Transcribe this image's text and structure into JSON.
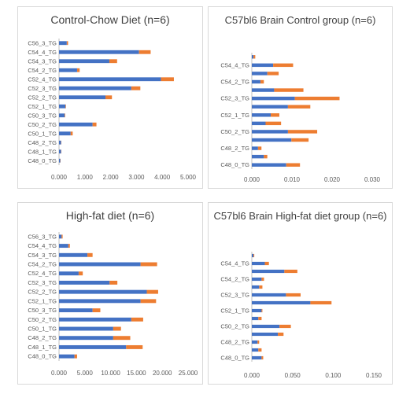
{
  "colors": {
    "series1": "#4472c4",
    "series2": "#ed7d31",
    "axis": "#bfbfbf",
    "text": "#595959"
  },
  "chart_data": [
    {
      "type": "bar",
      "orientation": "horizontal",
      "stacked": true,
      "title": "Control-Chow Diet (n=6)",
      "xlabel": "",
      "ylabel": "",
      "categories": [
        "C56_3_TG",
        "C54_4_TG",
        "C54_3_TG",
        "C54_2_TG",
        "C52_4_TG",
        "C52_3_TG",
        "C52_2_TG",
        "C52_1_TG",
        "C50_3_TG",
        "C50_2_TG",
        "C50_1_TG",
        "C48_2_TG",
        "C48_1_TG",
        "C48_0_TG"
      ],
      "series": [
        {
          "values": [
            0.3,
            3.1,
            1.95,
            0.7,
            3.95,
            2.8,
            1.8,
            0.25,
            0.22,
            1.3,
            0.45,
            0.08,
            0.08,
            0.05
          ]
        },
        {
          "values": [
            0.05,
            0.45,
            0.3,
            0.1,
            0.5,
            0.35,
            0.25,
            0.02,
            0.02,
            0.15,
            0.08,
            0.01,
            0.01,
            0.01
          ]
        }
      ],
      "xlim": [
        0,
        5
      ],
      "xticks": [
        "0.000",
        "1.000",
        "2.000",
        "3.000",
        "4.000",
        "5.000"
      ],
      "grid": false
    },
    {
      "type": "bar",
      "orientation": "horizontal",
      "stacked": true,
      "title": "C57bl6 Brain Control group (n=6)",
      "xlabel": "",
      "ylabel": "",
      "categories": [
        "",
        "C54_4_TG",
        "",
        "C54_2_TG",
        "",
        "C52_3_TG",
        "",
        "C52_1_TG",
        "",
        "C50_2_TG",
        "",
        "C48_2_TG",
        "",
        "C48_0_TG"
      ],
      "series": [
        {
          "values": [
            0.0005,
            0.0062,
            0.0045,
            0.0025,
            0.0065,
            0.0125,
            0.0105,
            0.0055,
            0.004,
            0.0105,
            0.0115,
            0.0018,
            0.0035,
            0.01
          ]
        },
        {
          "values": [
            0.0005,
            0.0058,
            0.0033,
            0.001,
            0.0085,
            0.013,
            0.0065,
            0.0025,
            0.0045,
            0.0085,
            0.005,
            0.001,
            0.001,
            0.004
          ]
        }
      ],
      "xlim": [
        0,
        0.035
      ],
      "xticks": [
        "0.000",
        "0.010",
        "0.020",
        "0.030"
      ],
      "grid": false
    },
    {
      "type": "bar",
      "orientation": "horizontal",
      "stacked": true,
      "title": "High-fat diet (n=6)",
      "xlabel": "",
      "ylabel": "",
      "categories": [
        "C56_3_TG",
        "C54_4_TG",
        "C54_3_TG",
        "C54_2_TG",
        "C52_4_TG",
        "C52_3_TG",
        "C52_2_TG",
        "C52_1_TG",
        "C50_3_TG",
        "C50_2_TG",
        "C50_1_TG",
        "C48_2_TG",
        "C48_1_TG",
        "C48_0_TG"
      ],
      "series": [
        {
          "values": [
            0.5,
            1.8,
            5.5,
            15.8,
            3.8,
            9.8,
            17.0,
            15.8,
            6.5,
            14.0,
            10.5,
            10.5,
            13.0,
            3.0
          ]
        },
        {
          "values": [
            0.2,
            0.3,
            1.0,
            3.2,
            0.8,
            1.5,
            2.2,
            3.0,
            1.5,
            2.3,
            1.5,
            3.3,
            3.2,
            0.5
          ]
        }
      ],
      "xlim": [
        0,
        25
      ],
      "xticks": [
        "0.000",
        "5.000",
        "10.000",
        "15.000",
        "20.000",
        "25.000"
      ],
      "grid": false
    },
    {
      "type": "bar",
      "orientation": "horizontal",
      "stacked": true,
      "title": "C57bl6 Brain High-fat diet group (n=6)",
      "xlabel": "",
      "ylabel": "",
      "categories": [
        "",
        "C54_4_TG",
        "",
        "C54_2_TG",
        "",
        "C52_3_TG",
        "",
        "C52_1_TG",
        "",
        "C50_2_TG",
        "",
        "C48_2_TG",
        "",
        "C48_0_TG"
      ],
      "series": [
        {
          "values": [
            0.002,
            0.016,
            0.04,
            0.012,
            0.009,
            0.042,
            0.072,
            0.012,
            0.008,
            0.034,
            0.032,
            0.007,
            0.008,
            0.012
          ]
        },
        {
          "values": [
            0.001,
            0.005,
            0.016,
            0.003,
            0.004,
            0.018,
            0.026,
            0.001,
            0.004,
            0.014,
            0.007,
            0.002,
            0.004,
            0.002
          ]
        }
      ],
      "xlim": [
        0,
        0.15
      ],
      "xticks": [
        "0.000",
        "0.050",
        "0.100",
        "0.150"
      ],
      "grid": false
    }
  ]
}
